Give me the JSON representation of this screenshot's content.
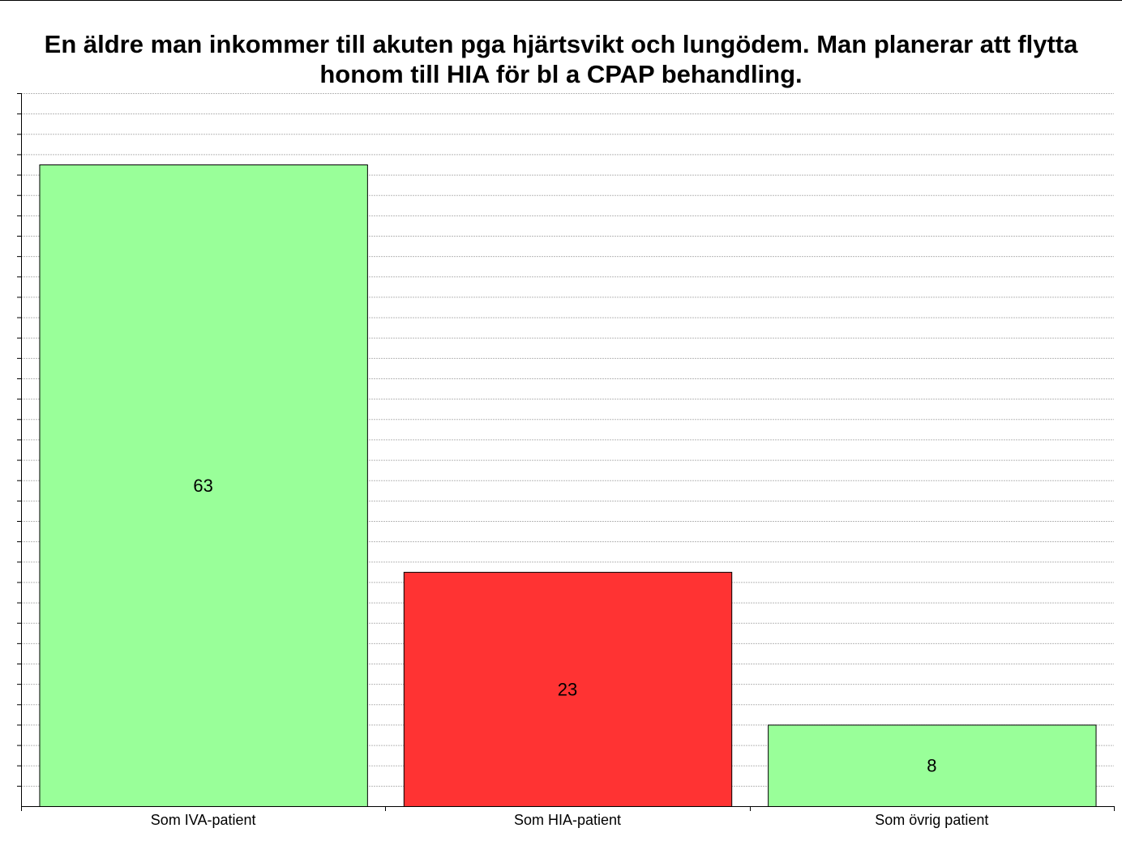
{
  "chart_data": {
    "type": "bar",
    "title": "En äldre man inkommer till akuten pga hjärtsvikt och lungödem. Man planerar att flytta honom till HIA för bl a CPAP behandling.",
    "xlabel": "",
    "ylabel": "",
    "categories": [
      "Som IVA-patient",
      "Som HIA-patient",
      "Som övrig patient"
    ],
    "values": [
      63,
      23,
      8
    ],
    "bar_colors": [
      "#99ff99",
      "#ff3333",
      "#99ff99"
    ],
    "ylim": [
      0,
      70
    ],
    "grid": true,
    "legend": "none",
    "data_labels": [
      "63",
      "23",
      "8"
    ]
  }
}
